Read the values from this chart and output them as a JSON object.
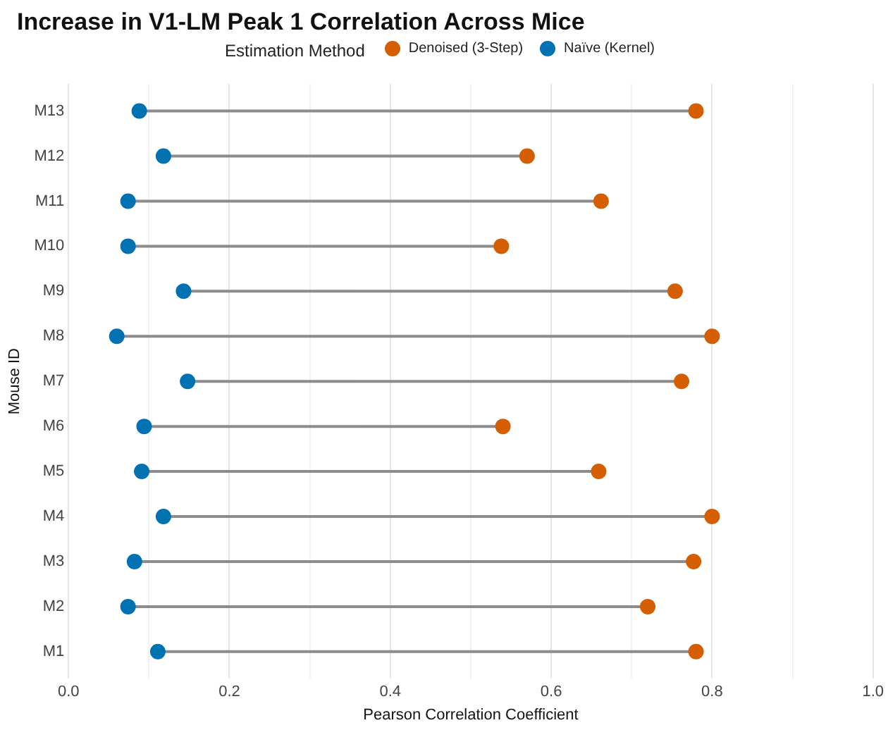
{
  "chart_data": {
    "type": "scatter",
    "orientation": "horizontal",
    "title": "Increase in V1-LM Peak 1 Correlation Across Mice",
    "xlabel": "Pearson Correlation Coefficient",
    "ylabel": "Mouse ID",
    "legend_title": "Estimation Method",
    "legend": "top",
    "grid": "x",
    "marker": "circle",
    "categories": [
      "M13",
      "M12",
      "M11",
      "M10",
      "M9",
      "M8",
      "M7",
      "M6",
      "M5",
      "M4",
      "M3",
      "M2",
      "M1"
    ],
    "series": [
      {
        "name": "Denoised (3-Step)",
        "color": "#d55e00",
        "values": [
          0.78,
          0.57,
          0.662,
          0.538,
          0.754,
          0.8,
          0.762,
          0.54,
          0.659,
          0.8,
          0.777,
          0.72,
          0.78
        ]
      },
      {
        "name": "Naïve (Kernel)",
        "color": "#0072b2",
        "values": [
          0.088,
          0.118,
          0.074,
          0.074,
          0.143,
          0.06,
          0.148,
          0.094,
          0.091,
          0.118,
          0.082,
          0.074,
          0.111
        ]
      }
    ],
    "xlim": [
      0,
      1
    ],
    "xticks": [
      {
        "value": 0,
        "label": "0.0"
      },
      {
        "value": 0.1,
        "label": null
      },
      {
        "value": 0.2,
        "label": "0.2"
      },
      {
        "value": 0.3,
        "label": null
      },
      {
        "value": 0.4,
        "label": "0.4"
      },
      {
        "value": 0.5,
        "label": null
      },
      {
        "value": 0.6,
        "label": "0.6"
      },
      {
        "value": 0.7,
        "label": null
      },
      {
        "value": 0.8,
        "label": "0.8"
      },
      {
        "value": 0.9,
        "label": null
      },
      {
        "value": 1,
        "label": "1.0"
      }
    ]
  }
}
